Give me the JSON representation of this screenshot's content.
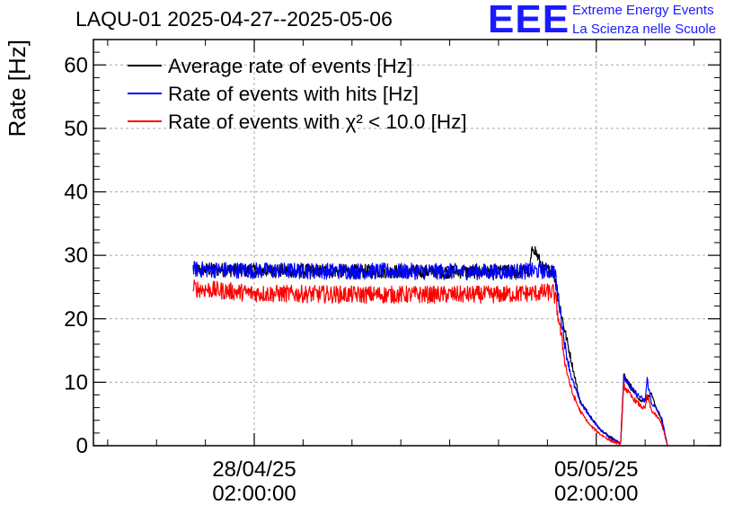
{
  "header": {
    "title": "LAQU-01 2025-04-27--2025-05-06",
    "logo_text": "EEE",
    "logo_line1": "Extreme Energy Events",
    "logo_line2": "La Scienza nelle Scuole",
    "logo_color": "#1a1aff"
  },
  "chart_data": {
    "type": "line",
    "title": "LAQU-01 2025-04-27--2025-05-06",
    "ylabel": "Rate [Hz]",
    "xlabel": "",
    "ylim": [
      0,
      64
    ],
    "xlim_hours": [
      -79,
      229
    ],
    "x_unit": "hours relative to 28/04/25 02:00:00",
    "yticks": [
      0,
      10,
      20,
      30,
      40,
      50,
      60
    ],
    "ytick_labels": [
      "0",
      "10",
      "20",
      "30",
      "40",
      "50",
      "60"
    ],
    "xticks": [
      {
        "hour": 0,
        "date": "28/04/25",
        "time": "02:00:00"
      },
      {
        "hour": 168,
        "date": "05/05/25",
        "time": "02:00:00"
      }
    ],
    "grid": true,
    "legend_position": "top-left",
    "legend": [
      {
        "key": "avg",
        "label": "Average rate of events [Hz]",
        "color": "#000000"
      },
      {
        "key": "hits",
        "label": "Rate of events with hits [Hz]",
        "color": "#0000ff"
      },
      {
        "key": "chi",
        "label": "Rate of events with χ² < 10.0 [Hz]",
        "color": "#ff0000"
      }
    ],
    "series": [
      {
        "name": "Average rate of events [Hz]",
        "color": "#000000",
        "x_hours": [
          -30,
          0,
          50,
          120,
          135,
          137,
          142,
          147,
          150,
          160,
          170,
          179,
          180,
          181.5,
          190,
          195,
          200,
          203
        ],
        "values": [
          27.8,
          27.6,
          27.5,
          27.4,
          27.5,
          31.5,
          27.6,
          27.6,
          22.0,
          7.0,
          2.5,
          0.5,
          0.5,
          11.0,
          7.0,
          8.0,
          4.0,
          0.0
        ]
      },
      {
        "name": "Rate of events with hits [Hz]",
        "color": "#0000ff",
        "x_hours": [
          -30,
          0,
          50,
          120,
          147,
          148,
          150,
          153,
          156,
          160,
          165,
          170,
          175,
          179,
          180,
          181.5,
          185,
          190,
          192,
          193,
          195,
          198,
          200,
          203
        ],
        "values": [
          27.8,
          27.6,
          27.5,
          27.4,
          27.6,
          26.5,
          22.0,
          15.0,
          10.5,
          7.0,
          4.5,
          2.5,
          1.2,
          0.6,
          0.6,
          11.0,
          9.0,
          7.5,
          7.0,
          10.5,
          6.8,
          5.5,
          4.5,
          0.0
        ]
      },
      {
        "name": "Rate of events with χ² < 10.0 [Hz]",
        "color": "#ff0000",
        "x_hours": [
          -30,
          0,
          50,
          120,
          147,
          148,
          150,
          153,
          156,
          160,
          165,
          170,
          175,
          179,
          180,
          181.5,
          185,
          190,
          192,
          193,
          195,
          198,
          200,
          203
        ],
        "values": [
          24.8,
          24.0,
          23.8,
          23.8,
          24.2,
          23.0,
          19.0,
          12.5,
          8.5,
          5.5,
          3.2,
          1.8,
          0.8,
          0.3,
          0.3,
          9.5,
          7.8,
          6.2,
          5.8,
          8.0,
          5.6,
          4.5,
          3.6,
          0.0
        ]
      }
    ],
    "noise_amplitude": [
      1.1,
      1.3,
      1.4
    ],
    "data_start_hour": -30,
    "data_end_hour": 203
  }
}
